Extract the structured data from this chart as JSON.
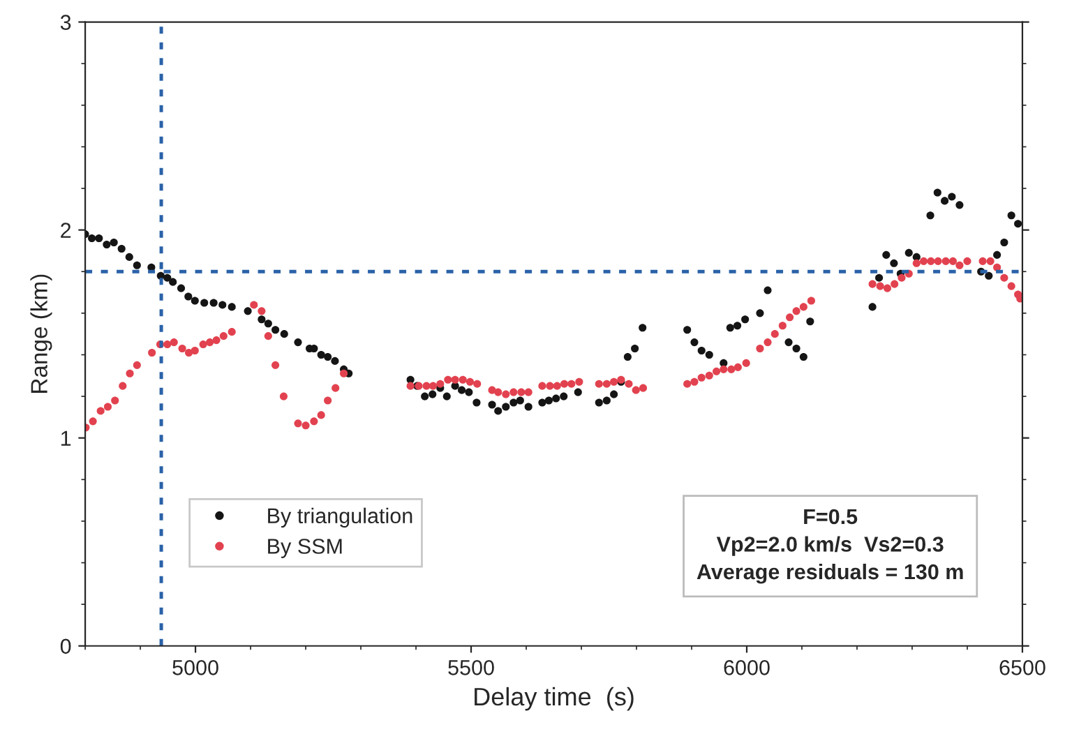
{
  "chart_data": {
    "type": "scatter",
    "xlabel": "Delay time  (s)",
    "ylabel": "Range (km)",
    "xlim": [
      4800,
      6500
    ],
    "xticks": [
      5000,
      5500,
      6000,
      6500
    ],
    "ylim": [
      0,
      3
    ],
    "yticks": [
      0,
      1,
      2,
      3
    ],
    "grid": false,
    "legend": "bottom left",
    "marker": "circle",
    "ref_lines": [
      {
        "axis": "x",
        "value": 4938,
        "color": "#2a62a8",
        "line_style": "dotted"
      },
      {
        "axis": "y",
        "value": 1.8,
        "color": "#2a62a8",
        "line_style": "dotted"
      }
    ],
    "annotations": [
      "F=0.5",
      "Vp2=2.0 km/s  Vs2=0.3",
      "Average residuals = 130 m"
    ],
    "series": [
      {
        "name": "By triangulation",
        "color": "#151515",
        "x": [
          4800,
          4812,
          4825,
          4839,
          4852,
          4866,
          4880,
          4894,
          4920,
          4937,
          4949,
          4959,
          4974,
          4987,
          4999,
          5016,
          5033,
          5049,
          5066,
          5095,
          5120,
          5132,
          5145,
          5161,
          5186,
          5207,
          5215,
          5228,
          5240,
          5253,
          5269,
          5278,
          5390,
          5402,
          5416,
          5430,
          5444,
          5456,
          5471,
          5483,
          5496,
          5510,
          5538,
          5549,
          5563,
          5577,
          5589,
          5604,
          5629,
          5641,
          5654,
          5668,
          5694,
          5732,
          5746,
          5759,
          5772,
          5784,
          5797,
          5811,
          5892,
          5905,
          5918,
          5932,
          5958,
          5970,
          5983,
          5997,
          6024,
          6038,
          6076,
          6090,
          6103,
          6115,
          6228,
          6240,
          6253,
          6267,
          6279,
          6294,
          6308,
          6333,
          6346,
          6359,
          6372,
          6386,
          6425,
          6439,
          6454,
          6467,
          6480,
          6492
        ],
        "values": [
          1.98,
          1.96,
          1.96,
          1.93,
          1.94,
          1.91,
          1.87,
          1.83,
          1.82,
          1.78,
          1.77,
          1.75,
          1.72,
          1.68,
          1.66,
          1.65,
          1.65,
          1.64,
          1.63,
          1.61,
          1.57,
          1.55,
          1.52,
          1.5,
          1.46,
          1.43,
          1.43,
          1.4,
          1.39,
          1.37,
          1.33,
          1.31,
          1.28,
          1.25,
          1.2,
          1.21,
          1.24,
          1.2,
          1.25,
          1.23,
          1.22,
          1.17,
          1.16,
          1.13,
          1.15,
          1.17,
          1.18,
          1.15,
          1.17,
          1.18,
          1.19,
          1.2,
          1.22,
          1.17,
          1.18,
          1.21,
          1.27,
          1.39,
          1.43,
          1.53,
          1.52,
          1.46,
          1.42,
          1.4,
          1.36,
          1.53,
          1.54,
          1.57,
          1.6,
          1.71,
          1.46,
          1.43,
          1.39,
          1.56,
          1.63,
          1.77,
          1.88,
          1.84,
          1.79,
          1.89,
          1.87,
          2.07,
          2.18,
          2.14,
          2.16,
          2.12,
          1.8,
          1.78,
          1.88,
          1.94,
          2.07,
          2.03
        ]
      },
      {
        "name": "By SSM",
        "color": "#e2424f",
        "x": [
          4801,
          4814,
          4828,
          4841,
          4854,
          4868,
          4881,
          4894,
          4921,
          4936,
          4949,
          4961,
          4976,
          4988,
          4999,
          5014,
          5026,
          5038,
          5051,
          5066,
          5106,
          5120,
          5132,
          5145,
          5160,
          5186,
          5200,
          5215,
          5228,
          5240,
          5254,
          5269,
          5390,
          5405,
          5419,
          5431,
          5444,
          5458,
          5471,
          5485,
          5498,
          5511,
          5538,
          5549,
          5563,
          5577,
          5591,
          5604,
          5629,
          5643,
          5656,
          5669,
          5682,
          5696,
          5732,
          5746,
          5759,
          5772,
          5786,
          5799,
          5812,
          5892,
          5905,
          5918,
          5932,
          5945,
          5958,
          5972,
          5984,
          5999,
          6024,
          6038,
          6051,
          6065,
          6078,
          6090,
          6103,
          6117,
          6228,
          6242,
          6255,
          6268,
          6281,
          6294,
          6308,
          6321,
          6334,
          6347,
          6361,
          6374,
          6386,
          6400,
          6428,
          6442,
          6454,
          6467,
          6480,
          6492,
          6496
        ],
        "values": [
          1.05,
          1.08,
          1.13,
          1.15,
          1.18,
          1.25,
          1.31,
          1.35,
          1.41,
          1.45,
          1.45,
          1.46,
          1.43,
          1.41,
          1.42,
          1.45,
          1.46,
          1.47,
          1.49,
          1.51,
          1.64,
          1.61,
          1.49,
          1.35,
          1.2,
          1.07,
          1.06,
          1.08,
          1.11,
          1.18,
          1.24,
          1.31,
          1.25,
          1.25,
          1.25,
          1.25,
          1.26,
          1.28,
          1.28,
          1.28,
          1.27,
          1.26,
          1.23,
          1.22,
          1.21,
          1.22,
          1.22,
          1.22,
          1.25,
          1.25,
          1.25,
          1.26,
          1.26,
          1.27,
          1.26,
          1.26,
          1.27,
          1.28,
          1.26,
          1.23,
          1.24,
          1.26,
          1.27,
          1.29,
          1.3,
          1.32,
          1.33,
          1.33,
          1.34,
          1.36,
          1.43,
          1.46,
          1.5,
          1.54,
          1.58,
          1.61,
          1.63,
          1.66,
          1.74,
          1.73,
          1.72,
          1.74,
          1.77,
          1.79,
          1.84,
          1.85,
          1.85,
          1.85,
          1.85,
          1.85,
          1.83,
          1.85,
          1.85,
          1.85,
          1.82,
          1.77,
          1.73,
          1.69,
          1.67
        ]
      }
    ]
  }
}
